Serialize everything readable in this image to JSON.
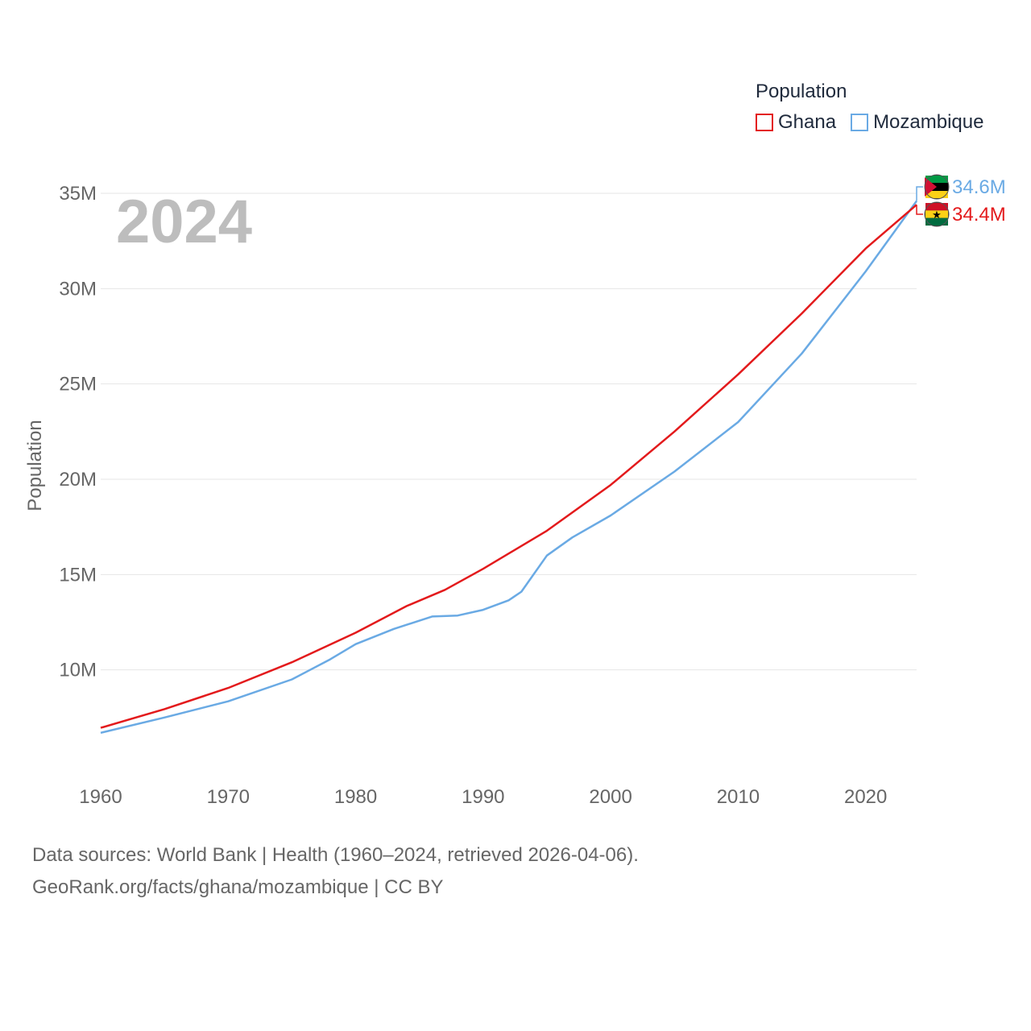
{
  "legend": {
    "title": "Population",
    "items": [
      {
        "name": "Ghana",
        "color": "#e31a1c"
      },
      {
        "name": "Mozambique",
        "color": "#6aaae4"
      }
    ]
  },
  "year_label": "2024",
  "footer": {
    "line1": "Data sources: World Bank | Health (1960–2024, retrieved 2026-04-06).",
    "line2": "GeoRank.org/facts/ghana/mozambique | CC BY"
  },
  "chart_data": {
    "type": "line",
    "title": "",
    "xlabel": "",
    "ylabel": "Population",
    "xlim": [
      1960,
      2024
    ],
    "ylim": [
      5000000,
      35000000
    ],
    "x_ticks": [
      1960,
      1970,
      1980,
      1990,
      2000,
      2010,
      2020
    ],
    "x_tick_labels": [
      "1960",
      "1970",
      "1980",
      "1990",
      "2000",
      "2010",
      "2020"
    ],
    "y_ticks": [
      10000000,
      15000000,
      20000000,
      25000000,
      30000000,
      35000000
    ],
    "y_tick_labels": [
      "10M",
      "15M",
      "20M",
      "25M",
      "30M",
      "35M"
    ],
    "grid": true,
    "series": [
      {
        "name": "Ghana",
        "color": "#e31a1c",
        "end_label": "34.4M",
        "points": [
          [
            1960,
            6960000
          ],
          [
            1965,
            7940000
          ],
          [
            1970,
            9050000
          ],
          [
            1975,
            10400000
          ],
          [
            1980,
            11950000
          ],
          [
            1984,
            13350000
          ],
          [
            1987,
            14200000
          ],
          [
            1990,
            15300000
          ],
          [
            1995,
            17300000
          ],
          [
            2000,
            19700000
          ],
          [
            2005,
            22500000
          ],
          [
            2010,
            25500000
          ],
          [
            2015,
            28700000
          ],
          [
            2020,
            32100000
          ],
          [
            2024,
            34400000
          ]
        ]
      },
      {
        "name": "Mozambique",
        "color": "#6aaae4",
        "end_label": "34.6M",
        "points": [
          [
            1960,
            6700000
          ],
          [
            1965,
            7500000
          ],
          [
            1970,
            8350000
          ],
          [
            1975,
            9500000
          ],
          [
            1978,
            10550000
          ],
          [
            1980,
            11350000
          ],
          [
            1983,
            12150000
          ],
          [
            1986,
            12800000
          ],
          [
            1988,
            12850000
          ],
          [
            1990,
            13150000
          ],
          [
            1992,
            13650000
          ],
          [
            1993,
            14100000
          ],
          [
            1995,
            16000000
          ],
          [
            1997,
            16950000
          ],
          [
            2000,
            18100000
          ],
          [
            2005,
            20400000
          ],
          [
            2010,
            23000000
          ],
          [
            2015,
            26600000
          ],
          [
            2020,
            30900000
          ],
          [
            2024,
            34600000
          ]
        ]
      }
    ]
  }
}
